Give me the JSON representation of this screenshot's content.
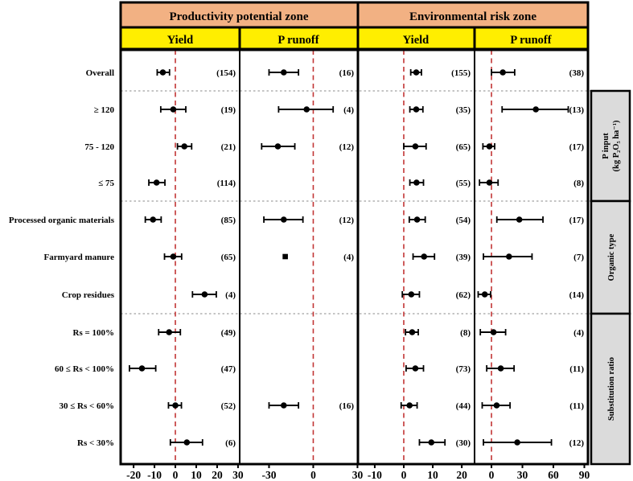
{
  "header": {
    "zones": [
      "Productivity potential zone",
      "Environmental risk zone"
    ],
    "measures": [
      "Yield",
      "P runoff",
      "Yield",
      "P runoff"
    ]
  },
  "row_labels": [
    "Overall",
    "≥ 120",
    "75 - 120",
    "≤ 75",
    "Processed organic materials",
    "Farmyard manure",
    "Crop residues",
    "Rs = 100%",
    "60 ≤ Rs < 100%",
    "30 ≤ Rs < 60%",
    "Rs < 30%"
  ],
  "group_labels": [
    {
      "lines": [
        "P input",
        "(kg P₂O₅ ha⁻¹)"
      ]
    },
    {
      "lines": [
        "Organic type"
      ]
    },
    {
      "lines": [
        "Substitution ratio"
      ]
    }
  ],
  "colors": {
    "header_orange": "#F2B183",
    "header_yellow": "#FFEE00",
    "zero_line_red": "#C23535",
    "category_box_gray": "#DBDBDB",
    "marker_black": "#000000"
  },
  "chart_data": [
    {
      "type": "forest",
      "zone": "Productivity potential zone",
      "measure": "Yield",
      "xlim": [
        -26.2,
        30.8
      ],
      "xticks": [
        -20,
        -10,
        0,
        10,
        20,
        30
      ],
      "zero_line": 0,
      "grid": false,
      "points": [
        {
          "row": "Overall",
          "mean": -6,
          "lo": -8.7,
          "hi": -2.8,
          "n": 154
        },
        {
          "row": "≥ 120",
          "mean": -1,
          "lo": -7,
          "hi": 5,
          "n": 19
        },
        {
          "row": "75 - 120",
          "mean": 4.3,
          "lo": 1,
          "hi": 7.8,
          "n": 21
        },
        {
          "row": "≤ 75",
          "mean": -9,
          "lo": -12.7,
          "hi": -5,
          "n": 114
        },
        {
          "row": "Processed organic materials",
          "mean": -10.7,
          "lo": -14.4,
          "hi": -6.8,
          "n": 85
        },
        {
          "row": "Farmyard manure",
          "mean": -1,
          "lo": -5.2,
          "hi": 3,
          "n": 65
        },
        {
          "row": "Crop residues",
          "mean": 14,
          "lo": 8.2,
          "hi": 19.6,
          "n": 4
        },
        {
          "row": "Rs = 100%",
          "mean": -3,
          "lo": -8,
          "hi": 2.4,
          "n": 49
        },
        {
          "row": "60 ≤ Rs < 100%",
          "mean": -16,
          "lo": -22,
          "hi": -9.4,
          "n": 47
        },
        {
          "row": "30 ≤ Rs < 60%",
          "mean": 0,
          "lo": -3.3,
          "hi": 2.9,
          "n": 52
        },
        {
          "row": "Rs < 30%",
          "mean": 5.5,
          "lo": -2.4,
          "hi": 13,
          "n": 6
        }
      ]
    },
    {
      "type": "forest",
      "zone": "Productivity potential zone",
      "measure": "P runoff",
      "xlim": [
        -49.9,
        30.3
      ],
      "xticks": [
        -30,
        0,
        30
      ],
      "zero_line": 0,
      "grid": false,
      "points": [
        {
          "row": "Overall",
          "mean": -20,
          "lo": -30,
          "hi": -10,
          "n": 16
        },
        {
          "row": "≥ 120",
          "mean": -4.5,
          "lo": -23.5,
          "hi": 13.5,
          "n": 4
        },
        {
          "row": "75 - 120",
          "mean": -24,
          "lo": -35,
          "hi": -12.5,
          "n": 12
        },
        {
          "row": "≤ 75",
          "mean": null,
          "lo": null,
          "hi": null,
          "n": null
        },
        {
          "row": "Processed organic materials",
          "mean": -20,
          "lo": -33.5,
          "hi": -7,
          "n": 12
        },
        {
          "row": "Farmyard manure",
          "mean": -19,
          "lo": null,
          "hi": null,
          "n": 4,
          "marker": "square"
        },
        {
          "row": "Crop residues",
          "mean": null,
          "lo": null,
          "hi": null,
          "n": null
        },
        {
          "row": "Rs = 100%",
          "mean": null,
          "lo": null,
          "hi": null,
          "n": null
        },
        {
          "row": "60 ≤ Rs < 100%",
          "mean": null,
          "lo": null,
          "hi": null,
          "n": null
        },
        {
          "row": "30 ≤ Rs < 60%",
          "mean": -20,
          "lo": -30,
          "hi": -10,
          "n": 16
        },
        {
          "row": "Rs < 30%",
          "mean": null,
          "lo": null,
          "hi": null,
          "n": null
        }
      ]
    },
    {
      "type": "forest",
      "zone": "Environmental risk zone",
      "measure": "Yield",
      "xlim": [
        -15.8,
        24.4
      ],
      "xticks": [
        -10,
        0,
        10,
        20
      ],
      "zero_line": 0,
      "grid": false,
      "points": [
        {
          "row": "Overall",
          "mean": 4.3,
          "lo": 2.4,
          "hi": 6.1,
          "n": 155
        },
        {
          "row": "≥ 120",
          "mean": 4.3,
          "lo": 2.1,
          "hi": 6.6,
          "n": 35
        },
        {
          "row": "75 - 120",
          "mean": 4,
          "lo": 0,
          "hi": 7.7,
          "n": 65
        },
        {
          "row": "≤ 75",
          "mean": 4.4,
          "lo": 2.1,
          "hi": 6.8,
          "n": 55
        },
        {
          "row": "Processed organic materials",
          "mean": 4.6,
          "lo": 1.9,
          "hi": 7.4,
          "n": 54
        },
        {
          "row": "Farmyard manure",
          "mean": 7,
          "lo": 3.2,
          "hi": 10.6,
          "n": 39
        },
        {
          "row": "Crop residues",
          "mean": 2.6,
          "lo": -0.5,
          "hi": 5.4,
          "n": 62
        },
        {
          "row": "Rs = 100%",
          "mean": 2.9,
          "lo": 0.6,
          "hi": 5,
          "n": 8
        },
        {
          "row": "60 ≤ Rs < 100%",
          "mean": 4,
          "lo": 0.8,
          "hi": 6.8,
          "n": 73
        },
        {
          "row": "30 ≤ Rs < 60%",
          "mean": 2,
          "lo": -0.9,
          "hi": 4.6,
          "n": 44
        },
        {
          "row": "Rs < 30%",
          "mean": 9.5,
          "lo": 5.4,
          "hi": 14.2,
          "n": 30
        }
      ]
    },
    {
      "type": "forest",
      "zone": "Environmental risk zone",
      "measure": "P runoff",
      "xlim": [
        -16.4,
        93.5
      ],
      "xticks": [
        0,
        30,
        60,
        90
      ],
      "zero_line": 0,
      "grid": false,
      "points": [
        {
          "row": "Overall",
          "mean": 11,
          "lo": 0,
          "hi": 22.5,
          "n": 38
        },
        {
          "row": "≥ 120",
          "mean": 43,
          "lo": 10.3,
          "hi": 74.4,
          "n": 13
        },
        {
          "row": "75 - 120",
          "mean": -2,
          "lo": -8.3,
          "hi": 3.1,
          "n": 17
        },
        {
          "row": "≤ 75",
          "mean": -2,
          "lo": -11.6,
          "hi": 6.4,
          "n": 8
        },
        {
          "row": "Processed organic materials",
          "mean": 27,
          "lo": 5.2,
          "hi": 49.9,
          "n": 17
        },
        {
          "row": "Farmyard manure",
          "mean": 17,
          "lo": -7.8,
          "hi": 39.3,
          "n": 7
        },
        {
          "row": "Crop residues",
          "mean": -6.5,
          "lo": -12.9,
          "hi": -0.8,
          "n": 14
        },
        {
          "row": "Rs = 100%",
          "mean": 2,
          "lo": -10.8,
          "hi": 13.7,
          "n": 4
        },
        {
          "row": "60 ≤ Rs < 100%",
          "mean": 9,
          "lo": -4.6,
          "hi": 21.9,
          "n": 11
        },
        {
          "row": "30 ≤ Rs < 60%",
          "mean": 5,
          "lo": -9,
          "hi": 18,
          "n": 11
        },
        {
          "row": "Rs < 30%",
          "mean": 25,
          "lo": -7.8,
          "hi": 58.1,
          "n": 12
        }
      ]
    }
  ]
}
